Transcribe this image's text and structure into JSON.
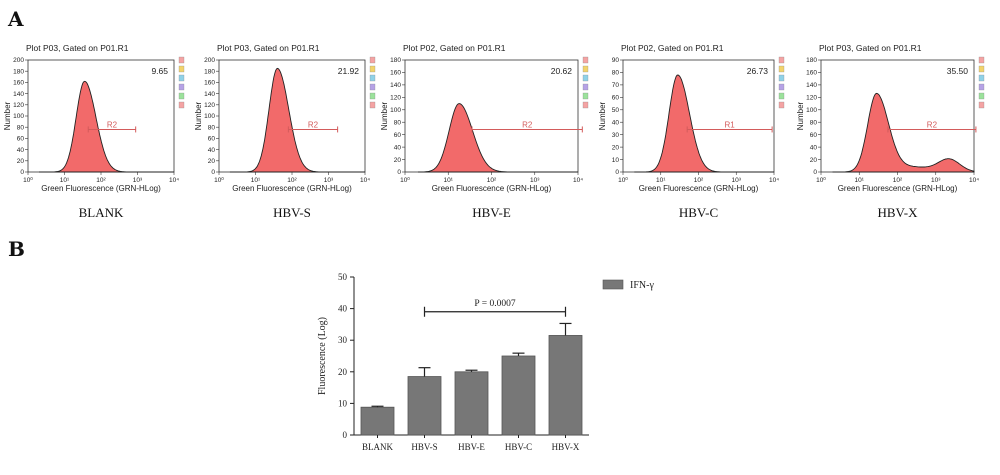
{
  "panels": {
    "a_label": "A",
    "b_label": "B"
  },
  "chart_data": [
    {
      "type": "area",
      "subtype": "flow-cytometry-histograms",
      "x_scale": "log",
      "xlabel": "Green Fluorescence (GRN-HLog)",
      "x_ticks": [
        "10⁰",
        "10¹",
        "10²",
        "10³",
        "10⁴"
      ],
      "panels": [
        {
          "title": "Plot P03, Gated on P01.R1",
          "sample": "BLANK",
          "gate": "R2",
          "gate_value": "9.65",
          "ylim": [
            0,
            200
          ],
          "y_ticks": [
            "0",
            "20",
            "40",
            "60",
            "80",
            "100",
            "120",
            "140",
            "160",
            "180",
            "200"
          ],
          "peak_x": 1.55,
          "peak_y": 162,
          "gate_range": [
            1.65,
            2.95
          ]
        },
        {
          "title": "Plot P03, Gated on P01.R1",
          "sample": "HBV-S",
          "gate": "R2",
          "gate_value": "21.92",
          "ylim": [
            0,
            200
          ],
          "y_ticks": [
            "0",
            "20",
            "40",
            "60",
            "80",
            "100",
            "120",
            "140",
            "160",
            "180",
            "200"
          ],
          "peak_x": 1.6,
          "peak_y": 185,
          "gate_range": [
            1.9,
            3.25
          ]
        },
        {
          "title": "Plot P02, Gated on P01.R1",
          "sample": "HBV-E",
          "gate": "R2",
          "gate_value": "20.62",
          "ylim": [
            0,
            180
          ],
          "y_ticks": [
            "0",
            "20",
            "40",
            "60",
            "80",
            "100",
            "120",
            "140",
            "160",
            "180"
          ],
          "peak_x": 1.25,
          "peak_y": 110,
          "gate_range": [
            1.55,
            4.1
          ]
        },
        {
          "title": "Plot P02, Gated on P01.R1",
          "sample": "HBV-C",
          "gate": "R1",
          "gate_value": "26.73",
          "ylim": [
            0,
            90
          ],
          "y_ticks": [
            "0",
            "10",
            "20",
            "30",
            "40",
            "50",
            "60",
            "70",
            "80",
            "90"
          ],
          "peak_x": 1.45,
          "peak_y": 78,
          "gate_range": [
            1.7,
            3.95
          ]
        },
        {
          "title": "Plot P03, Gated on P01.R1",
          "sample": "HBV-X",
          "gate": "R2",
          "gate_value": "35.50",
          "ylim": [
            0,
            180
          ],
          "y_ticks": [
            "0",
            "20",
            "40",
            "60",
            "80",
            "100",
            "120",
            "140",
            "160",
            "180"
          ],
          "peak_x": 1.45,
          "peak_y": 125,
          "second_peak_x": 3.35,
          "second_peak_y": 20,
          "gate_range": [
            1.75,
            4.05
          ]
        }
      ]
    },
    {
      "type": "bar",
      "categories": [
        "BLANK",
        "HBV-S",
        "HBV-E",
        "HBV-C",
        "HBV-X"
      ],
      "series": [
        {
          "name": "IFN-γ",
          "values": [
            8.8,
            18.5,
            20,
            25,
            31.5
          ],
          "errors": [
            0.3,
            2.8,
            0.5,
            0.9,
            3.8
          ]
        }
      ],
      "ylabel": "Fluorescence (Log)",
      "ylim": [
        0,
        50
      ],
      "y_ticks": [
        "0",
        "10",
        "20",
        "30",
        "40",
        "50"
      ],
      "annotation": {
        "text": "P = 0.0007",
        "from": "HBV-S",
        "to": "HBV-X",
        "y": 39
      },
      "legend_position": "top-right",
      "bar_color": "#777777"
    }
  ]
}
